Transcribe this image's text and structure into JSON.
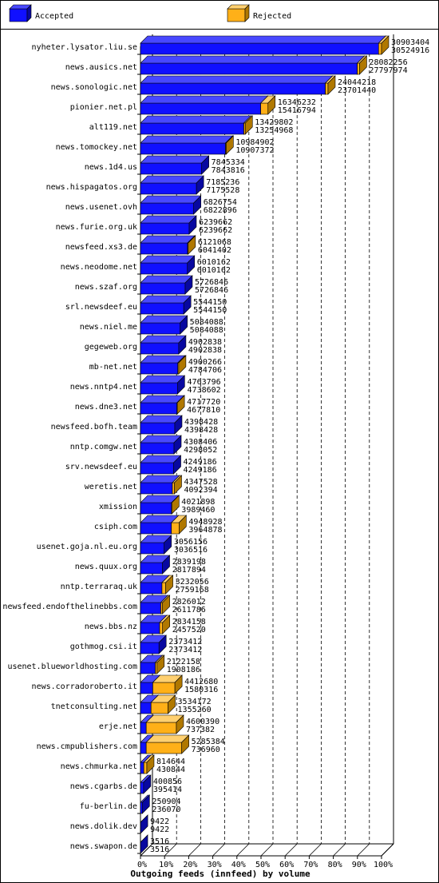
{
  "colors": {
    "accepted": "#1010ff",
    "accepted_top": "#4848ff",
    "accepted_side": "#0808a0",
    "rejected": "#ffb018",
    "rejected_top": "#ffd070",
    "rejected_side": "#b07800",
    "grid": "#000000",
    "text": "#000000"
  },
  "chart_data": {
    "type": "bar",
    "orientation": "horizontal",
    "stacked": true,
    "title": "Outgoing feeds (innfeed) by volume",
    "xlim": [
      0,
      100
    ],
    "x_ticks": [
      "0%",
      "10%",
      "20%",
      "30%",
      "40%",
      "50%",
      "60%",
      "70%",
      "80%",
      "90%",
      "100%"
    ],
    "grid": true,
    "legend_position": "top",
    "series": [
      {
        "name": "Accepted",
        "color_key": "accepted"
      },
      {
        "name": "Rejected",
        "color_key": "rejected"
      }
    ],
    "categories": [
      "nyheter.lysator.liu.se",
      "news.ausics.net",
      "news.sonologic.net",
      "pionier.net.pl",
      "alt119.net",
      "news.tomockey.net",
      "news.1d4.us",
      "news.hispagatos.org",
      "news.usenet.ovh",
      "news.furie.org.uk",
      "newsfeed.xs3.de",
      "news.neodome.net",
      "news.szaf.org",
      "srl.newsdeef.eu",
      "news.niel.me",
      "gegeweb.org",
      "mb-net.net",
      "news.nntp4.net",
      "news.dne3.net",
      "newsfeed.bofh.team",
      "nntp.comgw.net",
      "srv.newsdeef.eu",
      "weretis.net",
      "xmission",
      "csiph.com",
      "usenet.goja.nl.eu.org",
      "news.quux.org",
      "nntp.terraraq.uk",
      "newsfeed.endofthelinebbs.com",
      "news.bbs.nz",
      "gothmog.csi.it",
      "usenet.blueworldhosting.com",
      "news.corradoroberto.it",
      "tnetconsulting.net",
      "erje.net",
      "news.cmpublishers.com",
      "news.chmurka.net",
      "news.cgarbs.de",
      "fu-berlin.de",
      "news.dolik.dev",
      "news.swapon.de"
    ],
    "offered": [
      "30903404",
      "28082256",
      "24044218",
      "16346232",
      "13429802",
      "10984902",
      "7845334",
      "7185236",
      "6826754",
      "6239662",
      "6121068",
      "6010162",
      "5726846",
      "5544150",
      "5084088",
      "4902838",
      "4900266",
      "4763796",
      "4717720",
      "4398428",
      "4308406",
      "4249186",
      "4347528",
      "4021898",
      "4948928",
      "3056156",
      "2839198",
      "3232056",
      "2826012",
      "2834158",
      "2373412",
      "2122158",
      "4412680",
      "3534172",
      "4600390",
      "5285384",
      "814644",
      "400856",
      "250904",
      "9422",
      "3516"
    ],
    "accepted": [
      "30524916",
      "27797974",
      "23701440",
      "15416794",
      "13254968",
      "10907372",
      "7843816",
      "7175528",
      "6822896",
      "6239662",
      "6041402",
      "6010162",
      "5726846",
      "5544150",
      "5084088",
      "4902838",
      "4784706",
      "4738602",
      "4677810",
      "4398428",
      "4298052",
      "4249186",
      "4092394",
      "3989460",
      "3964878",
      "3036516",
      "2817894",
      "2759168",
      "2611786",
      "2457520",
      "2373412",
      "1908186",
      "1580316",
      "1355260",
      "737382",
      "736960",
      "430844",
      "395414",
      "236070",
      "9422",
      "3516"
    ]
  }
}
